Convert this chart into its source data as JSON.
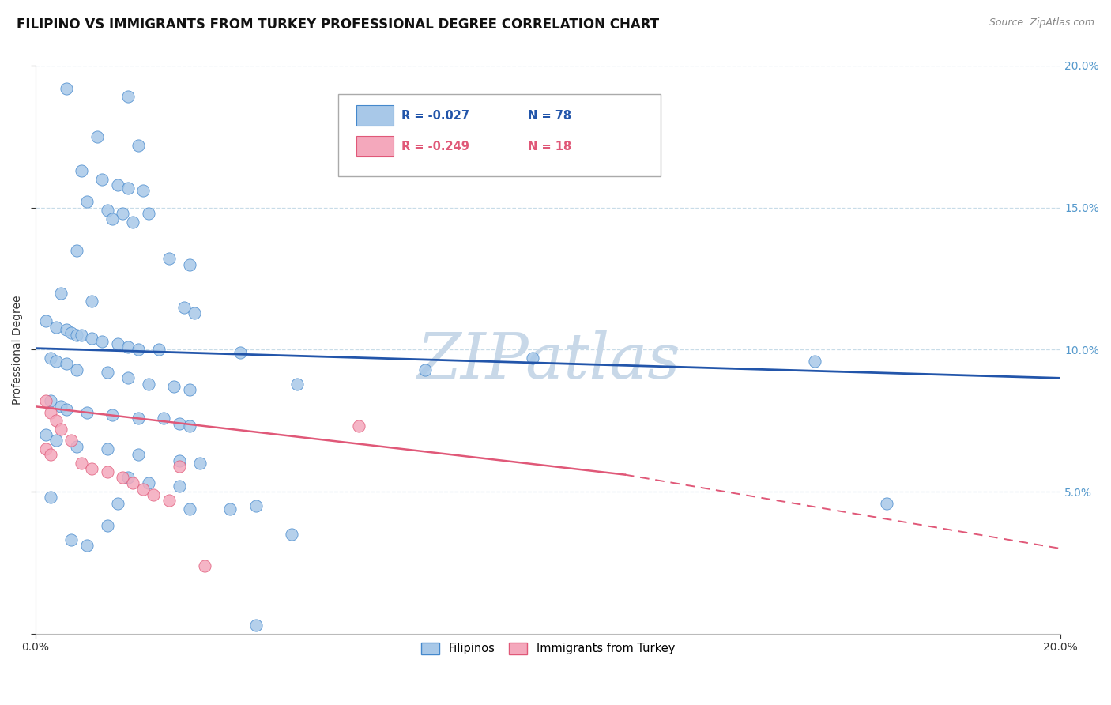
{
  "title": "FILIPINO VS IMMIGRANTS FROM TURKEY PROFESSIONAL DEGREE CORRELATION CHART",
  "source": "Source: ZipAtlas.com",
  "ylabel": "Professional Degree",
  "watermark": "ZIPatlas",
  "xlim": [
    0.0,
    0.2
  ],
  "ylim": [
    0.0,
    0.2
  ],
  "xtick_positions": [
    0.0,
    0.2
  ],
  "xtick_labels": [
    "0.0%",
    "20.0%"
  ],
  "ytick_right_positions": [
    0.05,
    0.1,
    0.15,
    0.2
  ],
  "ytick_right_labels": [
    "5.0%",
    "10.0%",
    "15.0%",
    "20.0%"
  ],
  "legend_entries": [
    {
      "label": "Filipinos",
      "R": "-0.027",
      "N": "78",
      "color": "#aac4e0"
    },
    {
      "label": "Immigrants from Turkey",
      "R": "-0.249",
      "N": "18",
      "color": "#f4a8bc"
    }
  ],
  "blue_line": {
    "x0": 0.0,
    "y0": 0.1005,
    "x1": 0.2,
    "y1": 0.09
  },
  "pink_line_solid": {
    "x0": 0.0,
    "y0": 0.08,
    "x1": 0.115,
    "y1": 0.056
  },
  "pink_line_dashed": {
    "x0": 0.115,
    "y0": 0.056,
    "x1": 0.2,
    "y1": 0.03
  },
  "blue_scatter": [
    [
      0.006,
      0.192
    ],
    [
      0.018,
      0.189
    ],
    [
      0.012,
      0.175
    ],
    [
      0.02,
      0.172
    ],
    [
      0.009,
      0.163
    ],
    [
      0.013,
      0.16
    ],
    [
      0.016,
      0.158
    ],
    [
      0.018,
      0.157
    ],
    [
      0.021,
      0.156
    ],
    [
      0.01,
      0.152
    ],
    [
      0.014,
      0.149
    ],
    [
      0.017,
      0.148
    ],
    [
      0.022,
      0.148
    ],
    [
      0.015,
      0.146
    ],
    [
      0.019,
      0.145
    ],
    [
      0.008,
      0.135
    ],
    [
      0.026,
      0.132
    ],
    [
      0.03,
      0.13
    ],
    [
      0.005,
      0.12
    ],
    [
      0.011,
      0.117
    ],
    [
      0.029,
      0.115
    ],
    [
      0.031,
      0.113
    ],
    [
      0.002,
      0.11
    ],
    [
      0.004,
      0.108
    ],
    [
      0.006,
      0.107
    ],
    [
      0.007,
      0.106
    ],
    [
      0.008,
      0.105
    ],
    [
      0.009,
      0.105
    ],
    [
      0.011,
      0.104
    ],
    [
      0.013,
      0.103
    ],
    [
      0.016,
      0.102
    ],
    [
      0.018,
      0.101
    ],
    [
      0.02,
      0.1
    ],
    [
      0.024,
      0.1
    ],
    [
      0.04,
      0.099
    ],
    [
      0.003,
      0.097
    ],
    [
      0.004,
      0.096
    ],
    [
      0.006,
      0.095
    ],
    [
      0.008,
      0.093
    ],
    [
      0.014,
      0.092
    ],
    [
      0.018,
      0.09
    ],
    [
      0.022,
      0.088
    ],
    [
      0.027,
      0.087
    ],
    [
      0.03,
      0.086
    ],
    [
      0.003,
      0.082
    ],
    [
      0.005,
      0.08
    ],
    [
      0.006,
      0.079
    ],
    [
      0.01,
      0.078
    ],
    [
      0.015,
      0.077
    ],
    [
      0.02,
      0.076
    ],
    [
      0.025,
      0.076
    ],
    [
      0.028,
      0.074
    ],
    [
      0.03,
      0.073
    ],
    [
      0.002,
      0.07
    ],
    [
      0.004,
      0.068
    ],
    [
      0.008,
      0.066
    ],
    [
      0.014,
      0.065
    ],
    [
      0.02,
      0.063
    ],
    [
      0.028,
      0.061
    ],
    [
      0.032,
      0.06
    ],
    [
      0.018,
      0.055
    ],
    [
      0.022,
      0.053
    ],
    [
      0.028,
      0.052
    ],
    [
      0.003,
      0.048
    ],
    [
      0.016,
      0.046
    ],
    [
      0.03,
      0.044
    ],
    [
      0.038,
      0.044
    ],
    [
      0.014,
      0.038
    ],
    [
      0.007,
      0.033
    ],
    [
      0.01,
      0.031
    ],
    [
      0.097,
      0.097
    ],
    [
      0.076,
      0.093
    ],
    [
      0.051,
      0.088
    ],
    [
      0.05,
      0.035
    ],
    [
      0.043,
      0.045
    ],
    [
      0.043,
      0.003
    ],
    [
      0.152,
      0.096
    ],
    [
      0.166,
      0.046
    ]
  ],
  "pink_scatter": [
    [
      0.002,
      0.082
    ],
    [
      0.003,
      0.078
    ],
    [
      0.004,
      0.075
    ],
    [
      0.005,
      0.072
    ],
    [
      0.007,
      0.068
    ],
    [
      0.002,
      0.065
    ],
    [
      0.003,
      0.063
    ],
    [
      0.009,
      0.06
    ],
    [
      0.011,
      0.058
    ],
    [
      0.014,
      0.057
    ],
    [
      0.017,
      0.055
    ],
    [
      0.019,
      0.053
    ],
    [
      0.021,
      0.051
    ],
    [
      0.023,
      0.049
    ],
    [
      0.026,
      0.047
    ],
    [
      0.028,
      0.059
    ],
    [
      0.063,
      0.073
    ],
    [
      0.033,
      0.024
    ]
  ],
  "blue_color": "#a8c8e8",
  "pink_color": "#f4a8bc",
  "blue_edge_color": "#4488cc",
  "pink_edge_color": "#e05878",
  "blue_line_color": "#2255aa",
  "pink_line_color": "#e05878",
  "grid_color": "#c8dce8",
  "background_color": "#ffffff",
  "title_fontsize": 12,
  "axis_label_fontsize": 10,
  "tick_fontsize": 10,
  "right_tick_color": "#5599cc",
  "watermark_color": "#c8d8e8",
  "watermark_fontsize": 58
}
